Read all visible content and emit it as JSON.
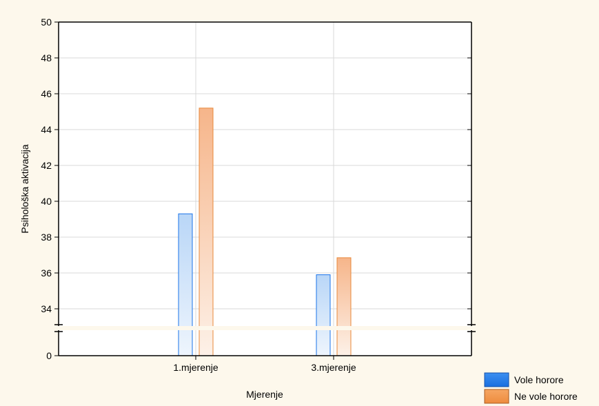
{
  "chart_data": {
    "type": "bar",
    "title": "",
    "xlabel": "Mjerenje",
    "ylabel": "Psihološka aktivacija",
    "categories": [
      "1.mjerenje",
      "3.mjerenje"
    ],
    "series": [
      {
        "name": "Vole horore",
        "values": [
          39.3,
          35.9
        ],
        "color": "#1a73e8"
      },
      {
        "name": "Ne vole horore",
        "values": [
          45.2,
          36.85
        ],
        "color": "#e8883a"
      }
    ],
    "ylim": [
      33,
      50
    ],
    "y_axis_break": true,
    "y_ticks": [
      "50",
      "48",
      "46",
      "44",
      "42",
      "40",
      "38",
      "36",
      "34",
      "0"
    ],
    "grid": true,
    "legend_position": "bottom-right"
  },
  "colors": {
    "background": "#fdf8ec",
    "plot_background": "#ffffff",
    "gridline": "#d9d9d9",
    "break_band": "#fdf8ec"
  }
}
